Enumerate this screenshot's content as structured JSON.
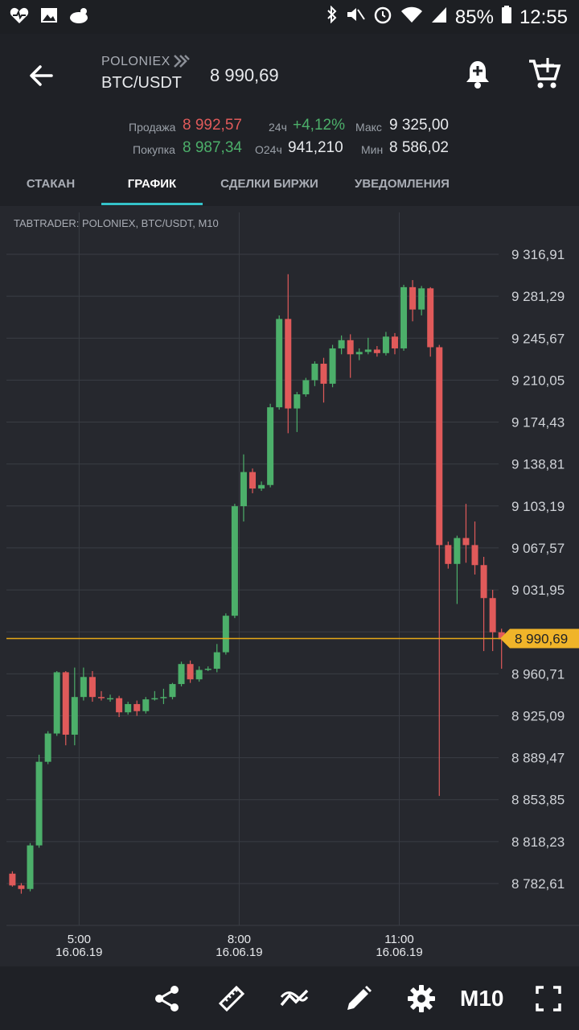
{
  "status_bar": {
    "battery": "85%",
    "time": "12:55",
    "icons": [
      "heart-pulse-icon",
      "image-icon",
      "bird-icon",
      "bluetooth-icon",
      "mute-icon",
      "alarm-icon",
      "wifi-icon",
      "signal-icon",
      "battery-icon"
    ]
  },
  "header": {
    "exchange": "POLONIEX",
    "pair": "BTC/USDT",
    "last_price": "8 990,69"
  },
  "stats": {
    "sell_label": "Продажа",
    "sell_value": "8 992,57",
    "buy_label": "Покупка",
    "buy_value": "8 987,34",
    "change_label": "24ч",
    "change_value": "+4,12%",
    "volume_label": "O24ч",
    "volume_value": "941,210",
    "max_label": "Макс",
    "max_value": "9 325,00",
    "min_label": "Мин",
    "min_value": "8 586,02"
  },
  "tabs": [
    {
      "label": "СТАКАН"
    },
    {
      "label": "ГРАФИК"
    },
    {
      "label": "СДЕЛКИ БИРЖИ"
    },
    {
      "label": "УВЕДОМЛЕНИЯ"
    }
  ],
  "chart_data": {
    "type": "candlestick",
    "title": "TABTRADER: POLONIEX, BTC/USDT, M10",
    "current_price": 8990.69,
    "current_price_label": "8 990,69",
    "y_ticks": [
      {
        "v": 9316.91,
        "label": "9 316,91"
      },
      {
        "v": 9281.29,
        "label": "9 281,29"
      },
      {
        "v": 9245.67,
        "label": "9 245,67"
      },
      {
        "v": 9210.05,
        "label": "9 210,05"
      },
      {
        "v": 9174.43,
        "label": "9 174,43"
      },
      {
        "v": 9138.81,
        "label": "9 138,81"
      },
      {
        "v": 9103.19,
        "label": "9 103,19"
      },
      {
        "v": 9067.57,
        "label": "9 067,57"
      },
      {
        "v": 9031.95,
        "label": "9 031,95"
      },
      {
        "v": 8996.33,
        "label": ""
      },
      {
        "v": 8960.71,
        "label": "8 960,71"
      },
      {
        "v": 8925.09,
        "label": "8 925,09"
      },
      {
        "v": 8889.47,
        "label": "8 889,47"
      },
      {
        "v": 8853.85,
        "label": "8 853,85"
      },
      {
        "v": 8818.23,
        "label": "8 818,23"
      },
      {
        "v": 8782.61,
        "label": "8 782,61"
      }
    ],
    "x_ticks": [
      {
        "i": 7.5,
        "time": "5:00",
        "date": "16.06.19"
      },
      {
        "i": 25.5,
        "time": "8:00",
        "date": "16.06.19"
      },
      {
        "i": 43.5,
        "time": "11:00",
        "date": "16.06.19"
      }
    ],
    "candles": [
      [
        8791,
        8781,
        8793,
        8780
      ],
      [
        8781,
        8778,
        8783,
        8774
      ],
      [
        8778,
        8815,
        8817,
        8776
      ],
      [
        8815,
        8886,
        8892,
        8813
      ],
      [
        8886,
        8910,
        8912,
        8884
      ],
      [
        8910,
        8962,
        8963,
        8908
      ],
      [
        8962,
        8909,
        8963,
        8900
      ],
      [
        8909,
        8941,
        8966,
        8900
      ],
      [
        8941,
        8958,
        8966,
        8938
      ],
      [
        8958,
        8941,
        8963,
        8937
      ],
      [
        8941,
        8940,
        8946,
        8938
      ],
      [
        8940,
        8940,
        8943,
        8937
      ],
      [
        8940,
        8928,
        8942,
        8924
      ],
      [
        8928,
        8935,
        8937,
        8926
      ],
      [
        8935,
        8929,
        8938,
        8925
      ],
      [
        8929,
        8939,
        8941,
        8927
      ],
      [
        8939,
        8940,
        8946,
        8938
      ],
      [
        8940,
        8941,
        8948,
        8935
      ],
      [
        8941,
        8952,
        8953,
        8939
      ],
      [
        8952,
        8969,
        8971,
        8950
      ],
      [
        8969,
        8956,
        8972,
        8953
      ],
      [
        8956,
        8964,
        8967,
        8954
      ],
      [
        8964,
        8965,
        8967,
        8963
      ],
      [
        8965,
        8979,
        8986,
        8962
      ],
      [
        8979,
        9010,
        9012,
        8977
      ],
      [
        9010,
        9103,
        9105,
        9008
      ],
      [
        9103,
        9132,
        9147,
        9090
      ],
      [
        9132,
        9118,
        9135,
        9114
      ],
      [
        9118,
        9121,
        9124,
        9116
      ],
      [
        9121,
        9187,
        9190,
        9119
      ],
      [
        9187,
        9262,
        9265,
        9185
      ],
      [
        9262,
        9186,
        9300,
        9165
      ],
      [
        9186,
        9198,
        9200,
        9166
      ],
      [
        9198,
        9210,
        9212,
        9196
      ],
      [
        9210,
        9224,
        9226,
        9205
      ],
      [
        9224,
        9207,
        9229,
        9191
      ],
      [
        9207,
        9237,
        9240,
        9204
      ],
      [
        9237,
        9244,
        9248,
        9232
      ],
      [
        9244,
        9232,
        9249,
        9212
      ],
      [
        9232,
        9234,
        9237,
        9227
      ],
      [
        9234,
        9236,
        9246,
        9232
      ],
      [
        9236,
        9233,
        9239,
        9230
      ],
      [
        9233,
        9247,
        9251,
        9231
      ],
      [
        9247,
        9237,
        9250,
        9232
      ],
      [
        9237,
        9289,
        9291,
        9235
      ],
      [
        9289,
        9270,
        9295,
        9260
      ],
      [
        9270,
        9288,
        9290,
        9265
      ],
      [
        9288,
        9238,
        9289,
        9230
      ],
      [
        9238,
        9070,
        9240,
        8857
      ],
      [
        9070,
        9054,
        9073,
        9050
      ],
      [
        9054,
        9076,
        9078,
        9020
      ],
      [
        9076,
        9070,
        9105,
        9055
      ],
      [
        9070,
        9053,
        9090,
        9045
      ],
      [
        9053,
        9025,
        9060,
        8980
      ],
      [
        9025,
        8996,
        9032,
        8980
      ],
      [
        8996,
        8990,
        8999,
        8965
      ]
    ]
  },
  "toolbar": {
    "timeframe": "M10",
    "icons": [
      "share-icon",
      "ruler-icon",
      "indicators-icon",
      "pencil-icon",
      "settings-icon",
      "fullscreen-icon"
    ]
  }
}
